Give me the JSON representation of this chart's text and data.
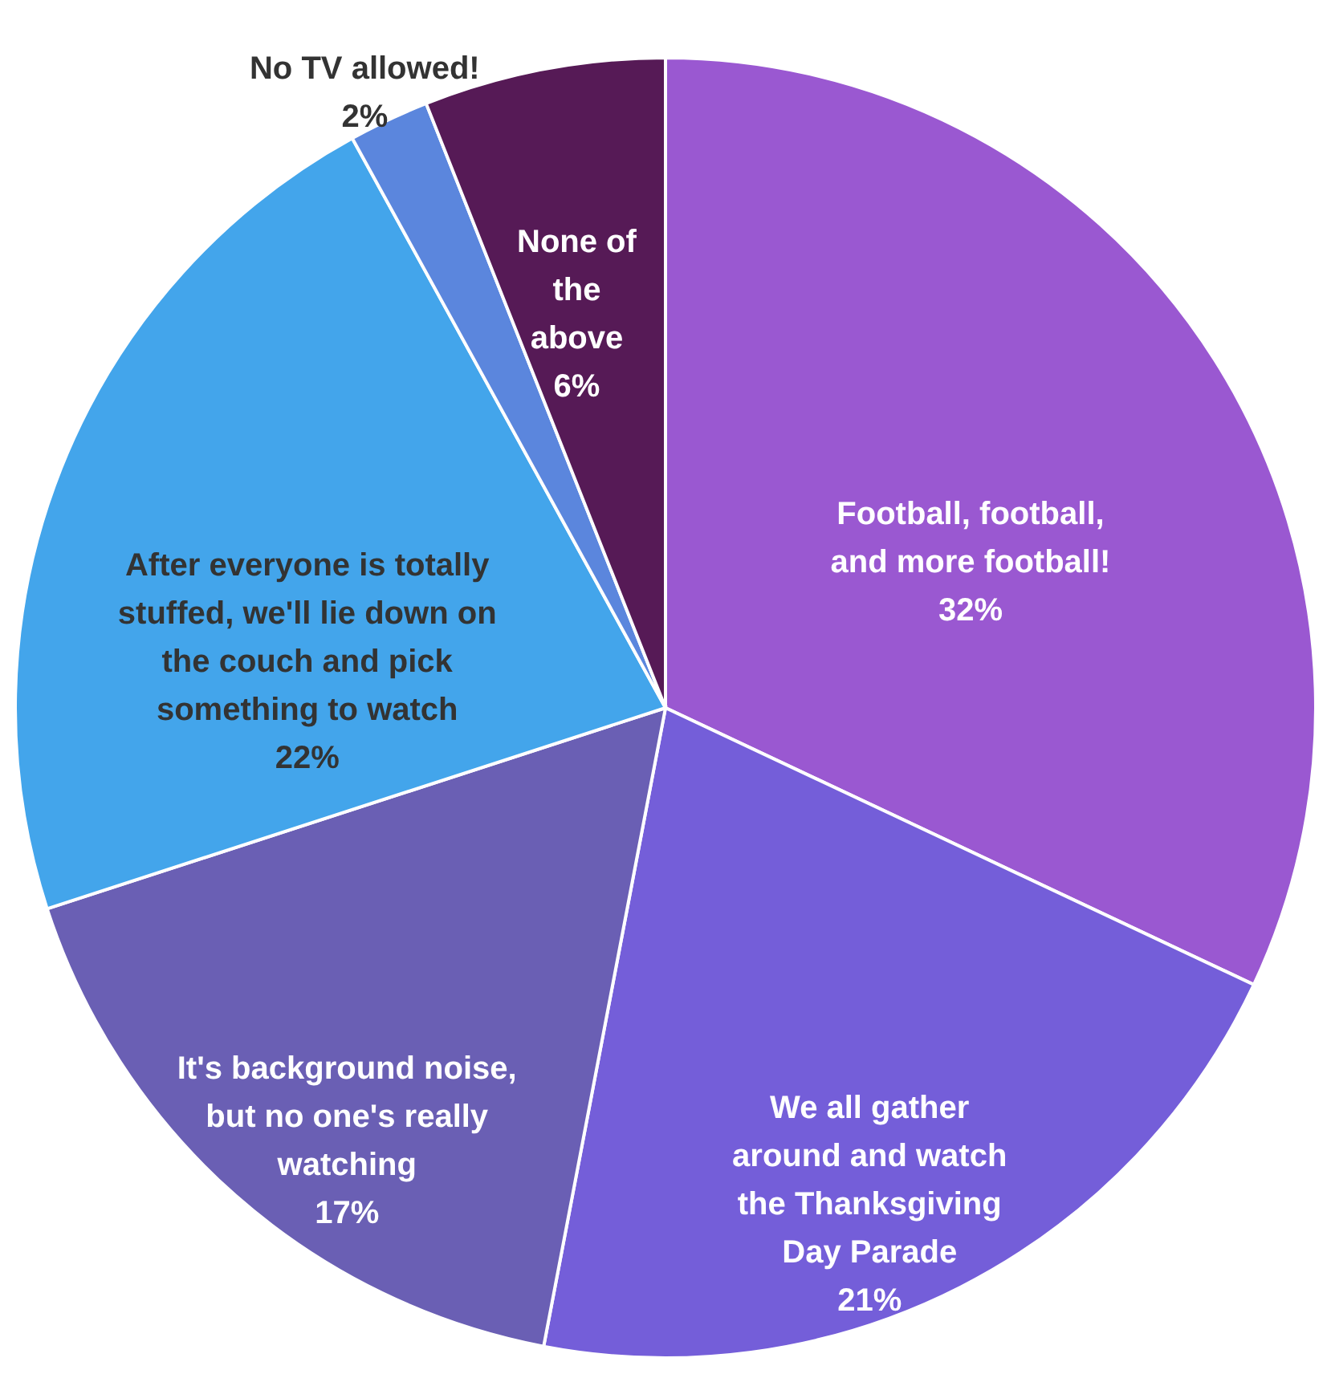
{
  "chart_data": {
    "type": "pie",
    "categories": [
      "Football, football, and more football!",
      "We all gather around and watch the Thanksgiving Day Parade",
      "It's background noise, but no one's really watching",
      "After everyone is totally stuffed, we'll lie down on the couch and pick something to watch",
      "No TV allowed!",
      "None of the above"
    ],
    "values": [
      32,
      21,
      17,
      22,
      2,
      6
    ],
    "value_labels": [
      "32%",
      "21%",
      "17%",
      "22%",
      "2%",
      "6%"
    ],
    "colors": [
      "#9a58d1",
      "#745ed9",
      "#6a5fb4",
      "#43a5eb",
      "#5b86dd",
      "#561a56"
    ]
  }
}
